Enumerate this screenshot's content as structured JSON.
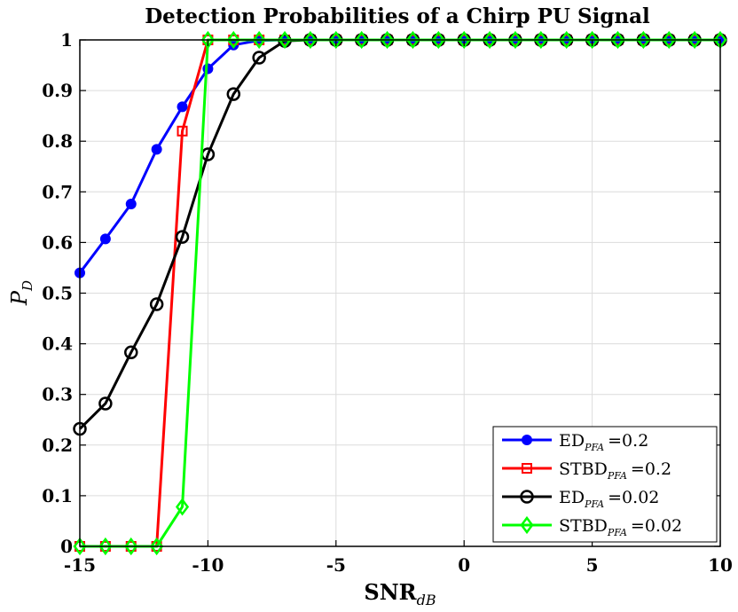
{
  "chart_data": {
    "type": "line",
    "title": "Detection Probabilities of a Chirp PU Signal",
    "xlabel": {
      "main": "SNR",
      "sub": "dB"
    },
    "ylabel": {
      "main": "P",
      "sub": "D"
    },
    "xlim": [
      -15,
      10
    ],
    "ylim": [
      0,
      1
    ],
    "xticks": [
      -15,
      -10,
      -5,
      0,
      5,
      10
    ],
    "xtick_labels": [
      "-15",
      "-10",
      "-5",
      "0",
      "5",
      "10"
    ],
    "yticks": [
      0,
      0.1,
      0.2,
      0.3,
      0.4,
      0.5,
      0.6,
      0.7,
      0.8,
      0.9,
      1
    ],
    "ytick_labels": [
      "0",
      "0.1",
      "0.2",
      "0.3",
      "0.4",
      "0.5",
      "0.6",
      "0.7",
      "0.8",
      "0.9",
      "1"
    ],
    "grid": true,
    "legend_position": "bottom-right",
    "x": [
      -15,
      -14,
      -13,
      -12,
      -11,
      -10,
      -9,
      -8,
      -7,
      -6,
      -5,
      -4,
      -3,
      -2,
      -1,
      0,
      1,
      2,
      3,
      4,
      5,
      6,
      7,
      8,
      9,
      10
    ],
    "series": [
      {
        "name": "ED",
        "sub": "PFA",
        "value_label": "=0.2",
        "color": "#0000ff",
        "marker": "filled-circle",
        "values": [
          0.54,
          0.607,
          0.676,
          0.784,
          0.868,
          0.943,
          0.99,
          0.999,
          1,
          1,
          1,
          1,
          1,
          1,
          1,
          1,
          1,
          1,
          1,
          1,
          1,
          1,
          1,
          1,
          1,
          1
        ]
      },
      {
        "name": "STBD",
        "sub": "PFA",
        "value_label": "=0.2",
        "color": "#ff0000",
        "marker": "square",
        "values": [
          0,
          0,
          0,
          0,
          0.82,
          1,
          1,
          1,
          1,
          1,
          1,
          1,
          1,
          1,
          1,
          1,
          1,
          1,
          1,
          1,
          1,
          1,
          1,
          1,
          1,
          1
        ]
      },
      {
        "name": "ED",
        "sub": "PFA",
        "value_label": "=0.02",
        "color": "#000000",
        "marker": "circle",
        "values": [
          0.232,
          0.282,
          0.383,
          0.478,
          0.611,
          0.774,
          0.893,
          0.965,
          0.998,
          1,
          1,
          1,
          1,
          1,
          1,
          1,
          1,
          1,
          1,
          1,
          1,
          1,
          1,
          1,
          1,
          1
        ]
      },
      {
        "name": "STBD",
        "sub": "PFA",
        "value_label": "=0.02",
        "color": "#00ff00",
        "marker": "diamond",
        "values": [
          0,
          0,
          0,
          0,
          0.078,
          1,
          1,
          1,
          1,
          1,
          1,
          1,
          1,
          1,
          1,
          1,
          1,
          1,
          1,
          1,
          1,
          1,
          1,
          1,
          1,
          1
        ]
      }
    ]
  }
}
